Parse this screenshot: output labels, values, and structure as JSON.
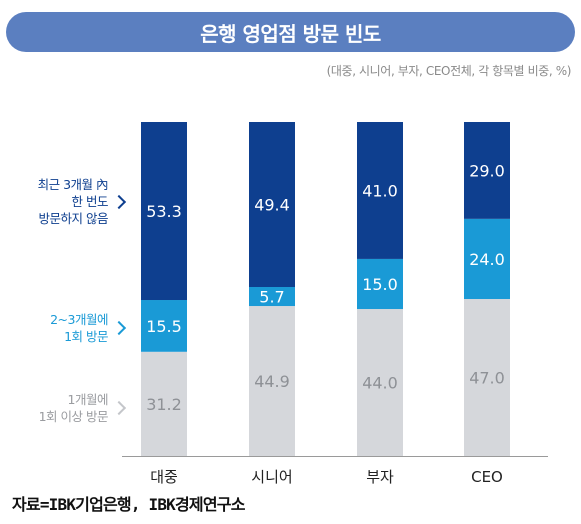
{
  "title": "은행 영업점 방문 빈도",
  "subtitle": "(대중, 시니어, 부자, CEO전체, 각 항목별 비중, %)",
  "source": "자료=IBK기업은행, IBK경제연구소",
  "chart_data": {
    "type": "bar",
    "stacked": true,
    "categories": [
      "대중",
      "시니어",
      "부자",
      "CEO"
    ],
    "series": [
      {
        "name": "1개월에\n1회 이상 방문",
        "values": [
          31.2,
          44.9,
          44.0,
          47.0
        ],
        "color": "#d5d7db",
        "label_color": "#8e9196"
      },
      {
        "name": "2~3개월에\n1회 방문",
        "values": [
          15.5,
          5.7,
          15.0,
          24.0
        ],
        "color": "#1a9ad6",
        "label_color": "#ffffff"
      },
      {
        "name": "최근 3개월 內\n한 번도\n방문하지 않음",
        "values": [
          53.3,
          49.4,
          41.0,
          29.0
        ],
        "color": "#0e3f8f",
        "label_color": "#ffffff"
      }
    ],
    "legend_colors": [
      "#c4c6ca",
      "#1a9ad6",
      "#0e3f8f"
    ],
    "ylim": [
      0,
      100
    ]
  }
}
